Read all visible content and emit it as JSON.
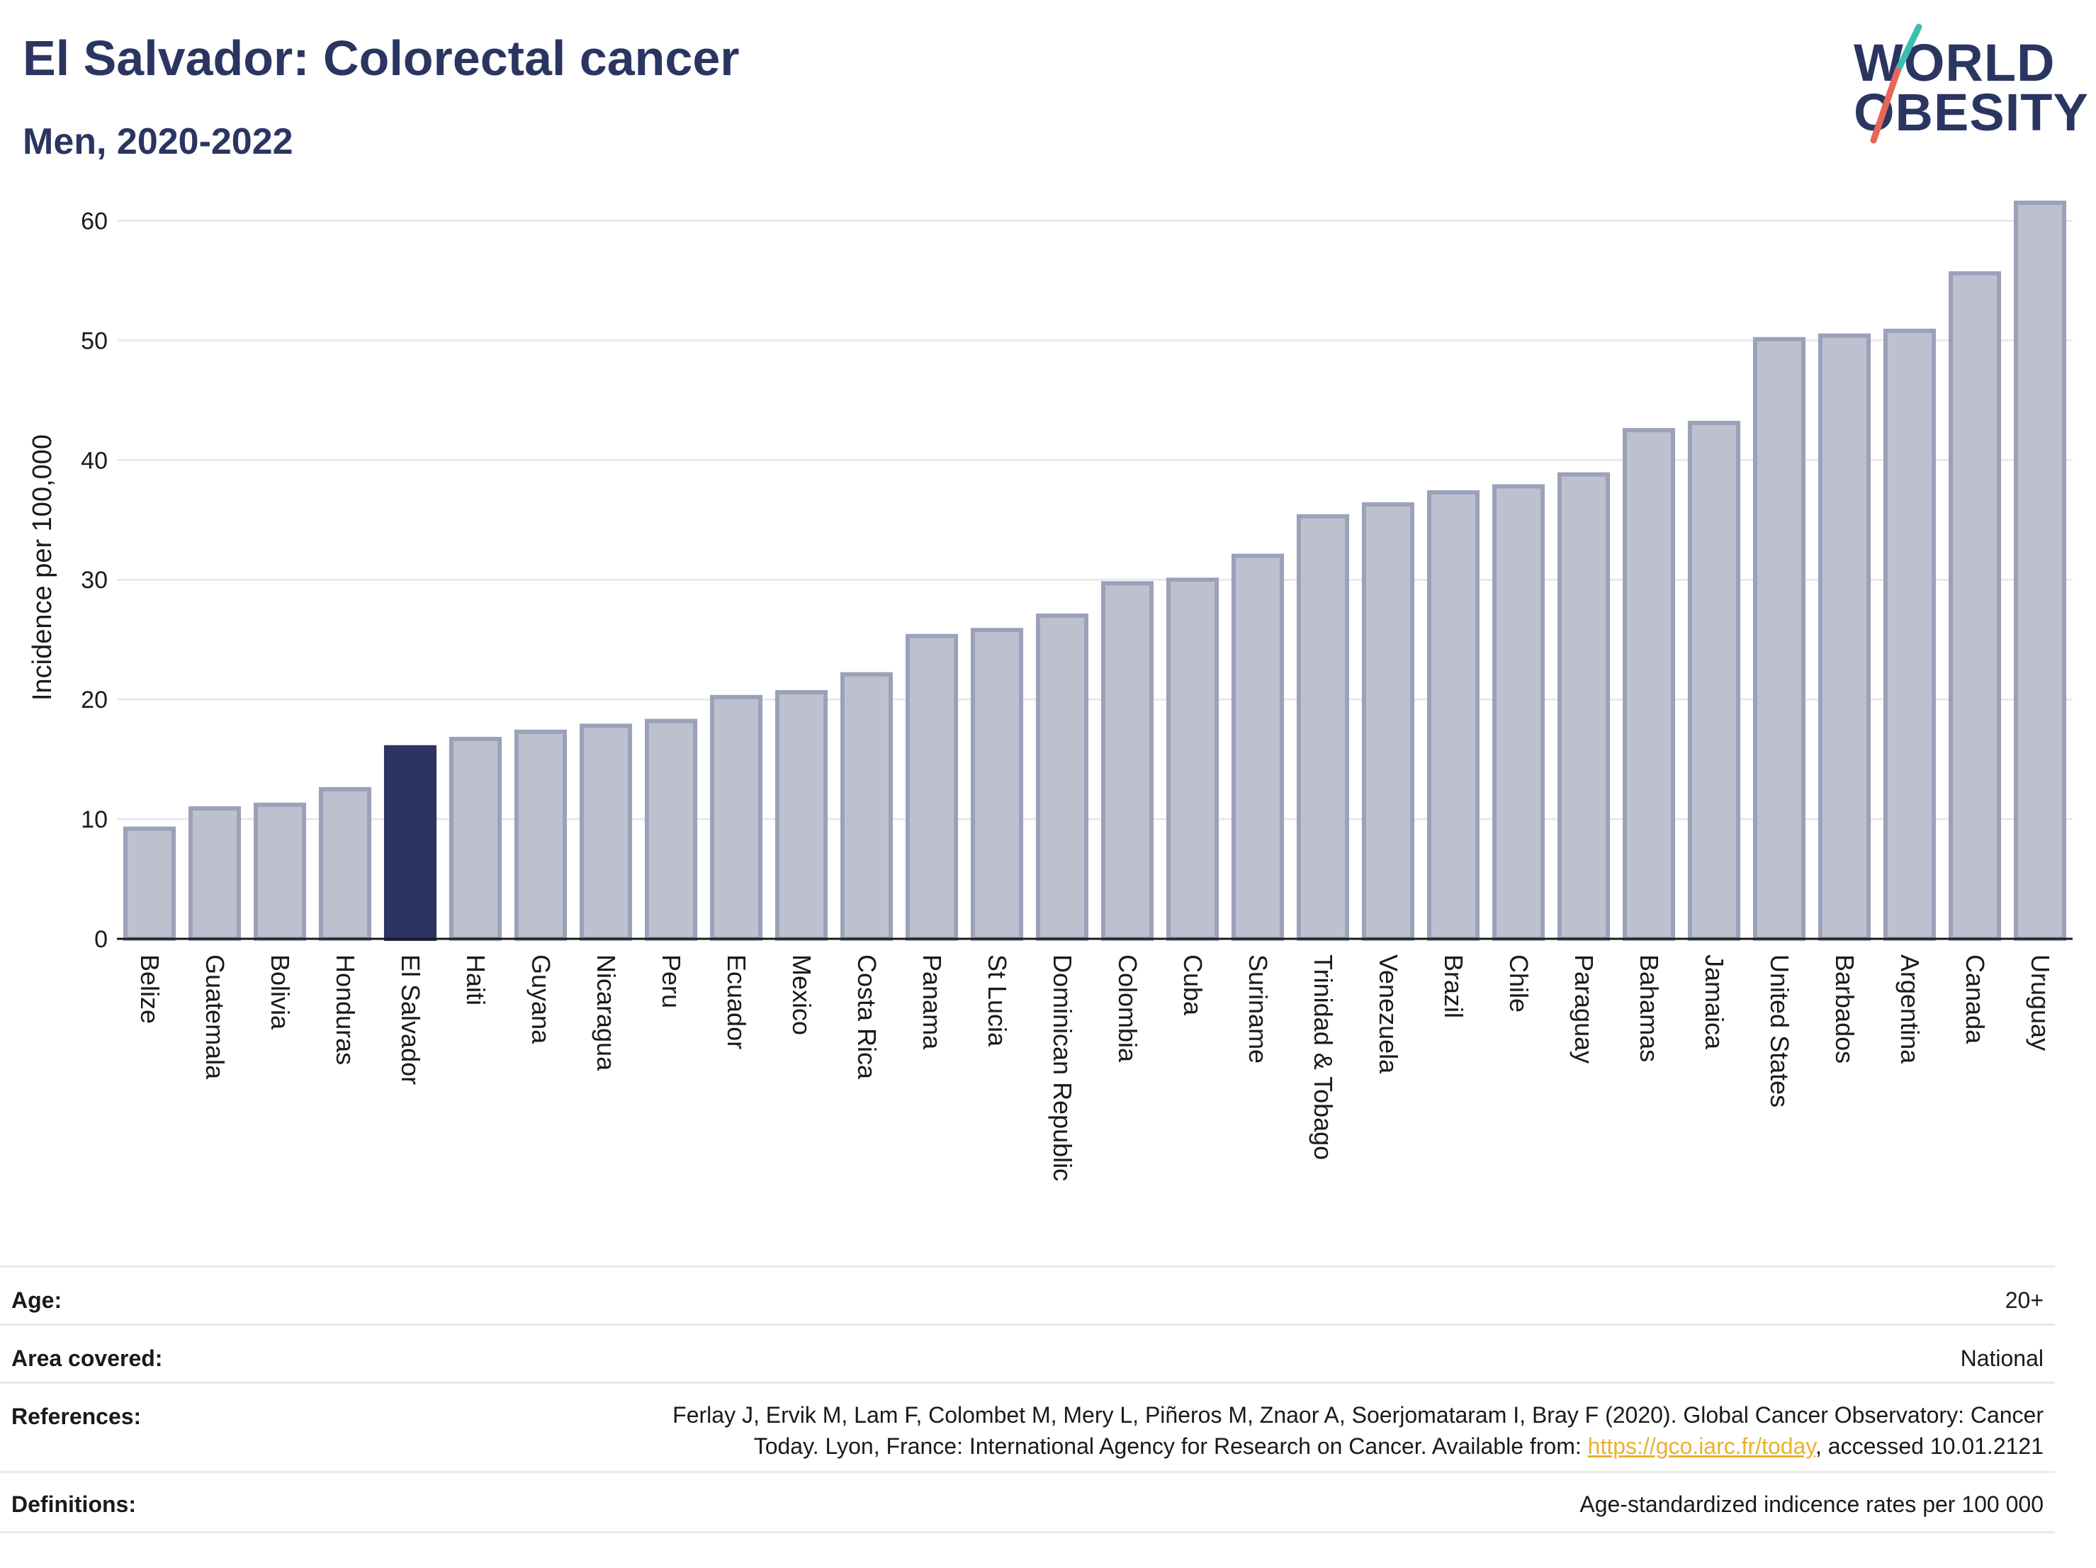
{
  "header": {
    "title": "El Salvador: Colorectal cancer",
    "subtitle": "Men, 2020-2022"
  },
  "logo": {
    "line1": "WORLD",
    "line2": "OBESITY",
    "colors": {
      "text": "#2b3561",
      "slash_top": "#3bbfad",
      "slash_bottom": "#e8655a"
    }
  },
  "chart_data": {
    "type": "bar",
    "ylabel": "Incidence per 100,000",
    "xlabel": "",
    "ylim": [
      0,
      65
    ],
    "yticks": [
      0,
      10,
      20,
      30,
      40,
      50,
      60
    ],
    "grid": true,
    "highlight": "El Salvador",
    "colors": {
      "bar": "#bdc1cf",
      "bar_edge": "#9ba1b8",
      "highlight": "#2b3561"
    },
    "categories": [
      "Belize",
      "Guatemala",
      "Bolivia",
      "Honduras",
      "El Salvador",
      "Haiti",
      "Guyana",
      "Nicaragua",
      "Peru",
      "Ecuador",
      "Mexico",
      "Costa Rica",
      "Panama",
      "St Lucia",
      "Dominican Republic",
      "Colombia",
      "Cuba",
      "Suriname",
      "Trinidad & Tobago",
      "Venezuela",
      "Brazil",
      "Chile",
      "Paraguay",
      "Bahamas",
      "Jamaica",
      "United States",
      "Barbados",
      "Argentina",
      "Canada",
      "Uruguay"
    ],
    "values": [
      9.2,
      10.9,
      11.2,
      12.5,
      16.0,
      16.7,
      17.3,
      17.8,
      18.2,
      20.2,
      20.6,
      22.1,
      25.3,
      25.8,
      27.0,
      29.7,
      30.0,
      32.0,
      35.3,
      36.3,
      37.3,
      37.8,
      38.8,
      42.5,
      43.1,
      50.1,
      50.4,
      50.8,
      55.6,
      61.5
    ]
  },
  "meta": {
    "age_label": "Age:",
    "age_value": "20+",
    "area_label": "Area covered:",
    "area_value": "National",
    "references_label": "References:",
    "references_line1": "Ferlay J, Ervik M, Lam F, Colombet M, Mery L, Piñeros M, Znaor A, Soerjomataram I, Bray F (2020). Global Cancer Observatory: Cancer",
    "references_line2_pre": "Today. Lyon, France: International Agency for Research on Cancer. Available from: ",
    "references_link": "https://gco.iarc.fr/today",
    "references_line2_post": ", accessed 10.01.2121",
    "definitions_label": "Definitions:",
    "definitions_value": "Age-standardized indicence rates per 100 000"
  }
}
